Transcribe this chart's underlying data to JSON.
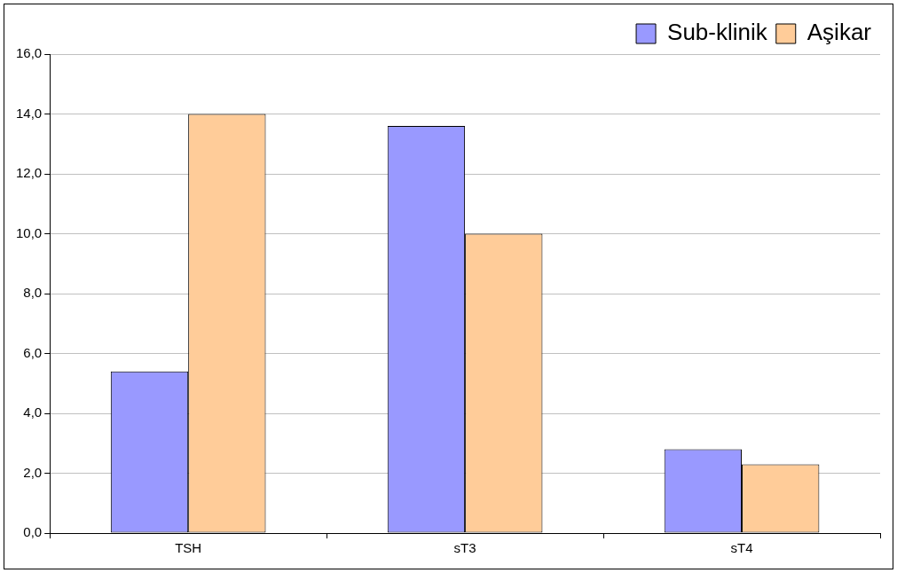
{
  "chart_data": {
    "type": "bar",
    "categories": [
      "TSH",
      "sT3",
      "sT4"
    ],
    "series": [
      {
        "name": "Sub-klinik",
        "color": "#9999ff",
        "values": [
          5.4,
          13.6,
          2.8
        ]
      },
      {
        "name": "Aşikar",
        "color": "#ffcc99",
        "values": [
          14.0,
          10.0,
          2.3
        ]
      }
    ],
    "ylim": [
      0,
      16
    ],
    "yticks": [
      {
        "value": 0,
        "label": "0,0"
      },
      {
        "value": 2,
        "label": "2,0"
      },
      {
        "value": 4,
        "label": "4,0"
      },
      {
        "value": 6,
        "label": "6,0"
      },
      {
        "value": 8,
        "label": "8,0"
      },
      {
        "value": 10,
        "label": "10,0"
      },
      {
        "value": 12,
        "label": "12,0"
      },
      {
        "value": 14,
        "label": "14,0"
      },
      {
        "value": 16,
        "label": "16,0"
      }
    ],
    "grid": "y",
    "legend": "top right"
  }
}
